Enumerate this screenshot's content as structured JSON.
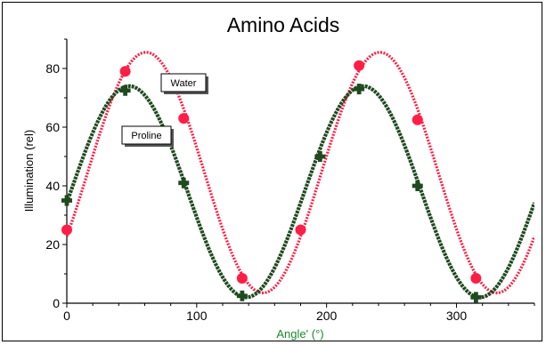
{
  "chart_data": {
    "type": "line",
    "title": "Amino Acids",
    "xlabel": "Angle' (°)",
    "ylabel": "Illumination (rel)",
    "xlim": [
      0,
      360
    ],
    "ylim": [
      0,
      90
    ],
    "x_ticks": [
      0,
      100,
      200,
      300
    ],
    "y_ticks": [
      0,
      20,
      40,
      60,
      80
    ],
    "grid": false,
    "colors": {
      "water": "#ff1e46",
      "proline": "#1f4a1f",
      "xlabel": "#1a8a2a"
    },
    "series": [
      {
        "name": "Water",
        "marker": "circle",
        "model": {
          "amplitude": 41,
          "offset": 44.5,
          "phase_deg": 61,
          "period_deg": 180
        },
        "points": [
          {
            "x": 0,
            "y": 25
          },
          {
            "x": 45,
            "y": 79
          },
          {
            "x": 90,
            "y": 63
          },
          {
            "x": 135,
            "y": 8.5
          },
          {
            "x": 180,
            "y": 25
          },
          {
            "x": 225,
            "y": 81
          },
          {
            "x": 270,
            "y": 62.5
          },
          {
            "x": 315,
            "y": 8.5
          }
        ]
      },
      {
        "name": "Proline",
        "marker": "plus",
        "model": {
          "amplitude": 36,
          "offset": 38,
          "phase_deg": 48,
          "period_deg": 180
        },
        "points": [
          {
            "x": 0,
            "y": 35
          },
          {
            "x": 45,
            "y": 72.5
          },
          {
            "x": 90,
            "y": 41
          },
          {
            "x": 135,
            "y": 2.5
          },
          {
            "x": 195,
            "y": 50
          },
          {
            "x": 225,
            "y": 73
          },
          {
            "x": 270,
            "y": 40
          },
          {
            "x": 315,
            "y": 2
          }
        ]
      }
    ],
    "annotations": [
      {
        "text": "Water",
        "series": "Water"
      },
      {
        "text": "Proline",
        "series": "Proline"
      }
    ]
  }
}
